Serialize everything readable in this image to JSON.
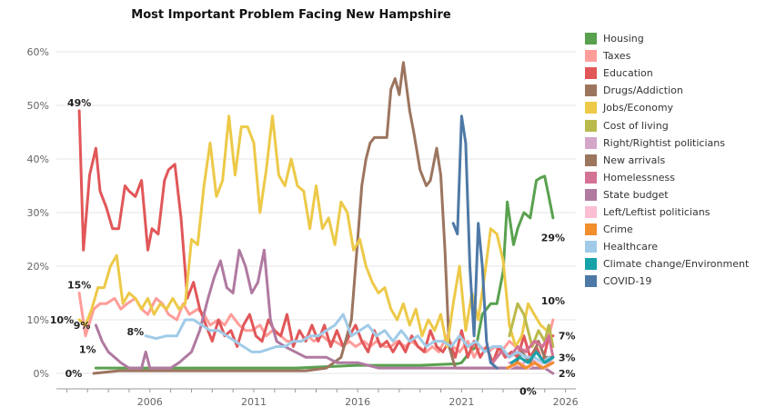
{
  "chart_data": {
    "type": "line",
    "title": "Most Important Problem Facing New Hampshire",
    "xlabel": "",
    "ylabel": "",
    "xlim": [
      2001.5,
      2026.5
    ],
    "ylim": [
      0,
      60
    ],
    "x_ticks": [
      "2006",
      "2011",
      "2016",
      "2021",
      "2026"
    ],
    "y_ticks": [
      "0%",
      "10%",
      "20%",
      "30%",
      "40%",
      "50%",
      "60%"
    ],
    "grid": "horizontal",
    "legend": "right",
    "series": [
      {
        "name": "Housing",
        "color": "#59a14f",
        "x": [
          2003.4,
          2008.0,
          2013.0,
          2016.0,
          2019.0,
          2020.8,
          2021.0,
          2021.4,
          2021.7,
          2022.0,
          2022.4,
          2022.7,
          2023.0,
          2023.2,
          2023.5,
          2023.7,
          2024.0,
          2024.3,
          2024.6,
          2024.8,
          2025.0,
          2025.2,
          2025.4
        ],
        "y": [
          1,
          1,
          1,
          1.5,
          1.5,
          1.8,
          2,
          4,
          5,
          11,
          13,
          13,
          19,
          32,
          24,
          27,
          30,
          29,
          36,
          36.5,
          36.8,
          33,
          29
        ]
      },
      {
        "name": "Taxes",
        "color": "#ff9d9a",
        "x": [
          2002.6,
          2002.9,
          2003.3,
          2003.6,
          2003.9,
          2004.3,
          2004.6,
          2004.9,
          2005.3,
          2005.6,
          2005.9,
          2006.3,
          2006.6,
          2006.9,
          2007.3,
          2007.6,
          2007.9,
          2008.3,
          2008.6,
          2008.9,
          2009.3,
          2009.6,
          2009.9,
          2010.3,
          2010.6,
          2010.9,
          2011.3,
          2011.6,
          2011.9,
          2012.3,
          2012.6,
          2012.9,
          2013.3,
          2013.6,
          2013.9,
          2014.3,
          2014.6,
          2014.9,
          2015.3,
          2015.6,
          2015.9,
          2016.3,
          2016.6,
          2016.9,
          2017.3,
          2017.6,
          2017.9,
          2018.3,
          2018.6,
          2018.9,
          2019.3,
          2019.6,
          2019.9,
          2020.3,
          2020.6,
          2020.9,
          2021.3,
          2021.6,
          2021.9,
          2022.3,
          2022.6,
          2022.9,
          2023.3,
          2023.6,
          2023.9,
          2024.3,
          2024.6,
          2024.9,
          2025.2,
          2025.4
        ],
        "y": [
          15,
          7,
          12,
          13,
          13,
          14,
          12,
          13,
          14,
          12,
          11,
          14,
          13,
          11,
          10,
          13,
          11,
          12,
          11,
          9,
          10,
          9,
          11,
          9,
          8,
          8,
          9,
          7,
          8,
          7,
          6,
          6,
          6,
          7,
          6,
          7,
          6,
          6,
          5,
          6,
          5,
          6,
          5,
          6,
          5,
          5,
          6,
          5,
          6,
          5,
          4,
          5,
          4,
          7,
          5,
          4,
          6,
          3,
          5,
          4,
          5,
          4,
          6,
          5,
          4,
          5,
          6,
          5,
          7,
          10
        ]
      },
      {
        "name": "Education",
        "color": "#e15759",
        "x": [
          2002.6,
          2002.8,
          2003.1,
          2003.4,
          2003.6,
          2003.9,
          2004.2,
          2004.5,
          2004.8,
          2005.0,
          2005.3,
          2005.6,
          2005.9,
          2006.1,
          2006.4,
          2006.7,
          2006.9,
          2007.2,
          2007.5,
          2007.8,
          2008.1,
          2008.4,
          2008.7,
          2009.0,
          2009.3,
          2009.6,
          2009.9,
          2010.2,
          2010.5,
          2010.8,
          2011.1,
          2011.4,
          2011.7,
          2012.0,
          2012.3,
          2012.6,
          2012.9,
          2013.2,
          2013.5,
          2013.8,
          2014.1,
          2014.4,
          2014.7,
          2015.0,
          2015.3,
          2015.6,
          2015.9,
          2016.2,
          2016.5,
          2016.8,
          2017.1,
          2017.4,
          2017.7,
          2018.0,
          2018.3,
          2018.6,
          2018.9,
          2019.2,
          2019.5,
          2019.8,
          2020.1,
          2020.4,
          2020.7,
          2021.0,
          2021.3,
          2021.6,
          2021.9,
          2022.2,
          2022.5,
          2022.8,
          2023.1,
          2023.4,
          2023.7,
          2024.0,
          2024.3,
          2024.6,
          2024.9,
          2025.2,
          2025.4
        ],
        "y": [
          49,
          23,
          37,
          42,
          34,
          31,
          27,
          27,
          35,
          34,
          33,
          36,
          23,
          27,
          26,
          36,
          38,
          39,
          29,
          14,
          17,
          12,
          9,
          6,
          10,
          7,
          8,
          5,
          9,
          11,
          7,
          6,
          10,
          8,
          7,
          11,
          5,
          8,
          6,
          9,
          6,
          9,
          5,
          8,
          5,
          7,
          9,
          6,
          4,
          8,
          5,
          6,
          4,
          6,
          4,
          7,
          5,
          4,
          8,
          5,
          4,
          6,
          3,
          8,
          3,
          6,
          3,
          5,
          2,
          5,
          3,
          4,
          3,
          7,
          3,
          5,
          2,
          7,
          7
        ]
      },
      {
        "name": "Drugs/Addiction",
        "color": "#9c755f",
        "x": [
          2003.3,
          2004.5,
          2006.0,
          2007.5,
          2009.0,
          2010.5,
          2012.0,
          2013.5,
          2014.5,
          2015.2,
          2015.7,
          2016.0,
          2016.2,
          2016.4,
          2016.6,
          2016.8,
          2017.1,
          2017.4,
          2017.6,
          2017.8,
          2018.0,
          2018.2,
          2018.5,
          2018.7,
          2019.0,
          2019.3,
          2019.5,
          2019.8,
          2020.0,
          2020.2,
          2020.4,
          2020.7,
          2021.0,
          2021.3,
          2021.7,
          2022.0,
          2022.5,
          2023.0,
          2023.5,
          2024.0,
          2024.5,
          2025.0,
          2025.4
        ],
        "y": [
          0,
          0.5,
          0.5,
          0.5,
          0.5,
          0.5,
          0.5,
          0.5,
          1,
          3,
          10,
          25,
          35,
          40,
          43,
          44,
          44,
          44,
          53,
          55,
          52,
          58,
          49,
          45,
          38,
          35,
          36,
          42,
          37,
          23,
          5,
          1,
          1,
          1,
          1,
          1,
          1,
          1,
          1,
          1,
          1,
          1,
          2
        ]
      },
      {
        "name": "Jobs/Economy",
        "color": "#edc948",
        "x": [
          2002.6,
          2002.9,
          2003.2,
          2003.5,
          2003.8,
          2004.1,
          2004.4,
          2004.7,
          2005.0,
          2005.3,
          2005.6,
          2005.9,
          2006.2,
          2006.5,
          2006.8,
          2007.1,
          2007.4,
          2007.7,
          2008.0,
          2008.3,
          2008.6,
          2008.9,
          2009.2,
          2009.5,
          2009.8,
          2010.1,
          2010.4,
          2010.7,
          2011.0,
          2011.3,
          2011.6,
          2011.9,
          2012.2,
          2012.5,
          2012.8,
          2013.1,
          2013.4,
          2013.7,
          2014.0,
          2014.3,
          2014.6,
          2014.9,
          2015.2,
          2015.5,
          2015.8,
          2016.1,
          2016.4,
          2016.7,
          2017.0,
          2017.3,
          2017.6,
          2017.9,
          2018.2,
          2018.5,
          2018.8,
          2019.1,
          2019.4,
          2019.7,
          2020.0,
          2020.3,
          2020.6,
          2020.9,
          2021.2,
          2021.5,
          2021.8,
          2022.1,
          2022.4,
          2022.7,
          2023.0,
          2023.3,
          2023.6,
          2023.9,
          2024.2,
          2024.5,
          2024.8,
          2025.1
        ],
        "y": [
          10,
          9,
          12,
          16,
          16,
          20,
          22,
          13,
          15,
          14,
          12,
          14,
          11,
          13,
          12,
          14,
          12,
          13,
          25,
          24,
          35,
          43,
          33,
          36,
          48,
          37,
          46,
          46,
          43,
          30,
          38,
          48,
          37,
          35,
          40,
          35,
          34,
          27,
          35,
          27,
          29,
          24,
          32,
          30,
          23,
          25,
          20,
          17,
          15,
          16,
          12,
          10,
          13,
          9,
          12,
          7,
          10,
          8,
          11,
          5,
          13,
          20,
          8,
          15,
          10,
          18,
          27,
          26,
          21,
          9,
          5,
          7,
          13,
          11,
          9,
          8
        ]
      },
      {
        "name": "Cost of living",
        "color": "#bab94b",
        "x": [
          2023.3,
          2023.7,
          2024.0,
          2024.4,
          2024.7,
          2025.0,
          2025.2,
          2025.4
        ],
        "y": [
          7,
          13,
          11,
          5,
          8,
          6,
          9,
          5
        ]
      },
      {
        "name": "Right/Rightist politicians",
        "color": "#d4a6c8",
        "x": [
          2023.3,
          2023.8,
          2024.2,
          2024.6,
          2025.0,
          2025.4
        ],
        "y": [
          2,
          1,
          3,
          2,
          1,
          3
        ]
      },
      {
        "name": "New arrivals",
        "color": "#9c755f",
        "x": [
          2023.5,
          2023.9,
          2024.3,
          2024.7,
          2025.0,
          2025.4
        ],
        "y": [
          1,
          4,
          2,
          6,
          3,
          3
        ]
      },
      {
        "name": "Homelessness",
        "color": "#d37295",
        "x": [
          2022.5,
          2022.9,
          2023.3,
          2023.7,
          2024.1,
          2024.5,
          2024.9,
          2025.2,
          2025.4
        ],
        "y": [
          2,
          4,
          3,
          5,
          4,
          6,
          5,
          7,
          3
        ]
      },
      {
        "name": "State budget",
        "color": "#b07aa1",
        "x": [
          2003.4,
          2003.7,
          2004.0,
          2004.3,
          2004.6,
          2005.0,
          2005.3,
          2005.6,
          2005.8,
          2006.0,
          2006.3,
          2006.6,
          2007.0,
          2007.4,
          2007.7,
          2008.0,
          2008.4,
          2008.8,
          2009.1,
          2009.4,
          2009.7,
          2010.0,
          2010.3,
          2010.6,
          2010.9,
          2011.2,
          2011.5,
          2011.8,
          2012.1,
          2012.5,
          2013.0,
          2013.5,
          2014.0,
          2014.5,
          2015.0,
          2015.5,
          2016.0,
          2017.0,
          2018.0,
          2019.0,
          2020.0,
          2021.0,
          2022.0,
          2023.0,
          2024.0,
          2025.0,
          2025.4
        ],
        "y": [
          9,
          6,
          4,
          3,
          2,
          1,
          1,
          1,
          4,
          1,
          1,
          1,
          1,
          2,
          3,
          4,
          8,
          14,
          18,
          21,
          16,
          15,
          23,
          20,
          15,
          17,
          23,
          10,
          6,
          5,
          4,
          3,
          3,
          3,
          2,
          2,
          2,
          1,
          1,
          1,
          1,
          1,
          1,
          1,
          1,
          1,
          0
        ]
      },
      {
        "name": "Left/Leftist politicians",
        "color": "#fabfd2",
        "x": [
          2023.3,
          2023.8,
          2024.2,
          2024.6,
          2025.0,
          2025.4
        ],
        "y": [
          1,
          2,
          1,
          2,
          1,
          2
        ]
      },
      {
        "name": "Crime",
        "color": "#f28e2b",
        "x": [
          2023.2,
          2023.7,
          2024.1,
          2024.5,
          2024.9,
          2025.4
        ],
        "y": [
          1,
          2,
          1,
          2,
          1,
          2
        ]
      },
      {
        "name": "Healthcare",
        "color": "#a0cbe8",
        "x": [
          2005.8,
          2006.3,
          2006.8,
          2007.3,
          2007.7,
          2008.1,
          2008.5,
          2008.9,
          2009.3,
          2009.7,
          2010.1,
          2010.5,
          2010.9,
          2011.3,
          2011.7,
          2012.1,
          2012.5,
          2012.9,
          2013.3,
          2013.7,
          2014.1,
          2014.5,
          2014.9,
          2015.3,
          2015.7,
          2016.1,
          2016.5,
          2016.9,
          2017.3,
          2017.7,
          2018.1,
          2018.5,
          2018.9,
          2019.3,
          2019.7,
          2020.1,
          2020.5,
          2020.9,
          2021.3,
          2021.7,
          2022.1,
          2022.5,
          2022.9,
          2023.3,
          2023.7,
          2024.1,
          2024.5,
          2024.9,
          2025.2
        ],
        "y": [
          7,
          6.5,
          7,
          7,
          10,
          10,
          9,
          8,
          8,
          7,
          6,
          5,
          4,
          4,
          4.5,
          5,
          5,
          6,
          6,
          7,
          7,
          8,
          9,
          11,
          7,
          8,
          9,
          7,
          8,
          6,
          8,
          6,
          7,
          5,
          6,
          6,
          5,
          7,
          5,
          6,
          4,
          5,
          5,
          3,
          4,
          3,
          3,
          2,
          3
        ]
      },
      {
        "name": "Climate change/Environment",
        "color": "#17a2a8",
        "x": [
          2023.4,
          2023.8,
          2024.2,
          2024.6,
          2025.0,
          2025.4
        ],
        "y": [
          2,
          3,
          2,
          4,
          2,
          3
        ]
      },
      {
        "name": "COVID-19",
        "color": "#4e79a7",
        "x": [
          2020.6,
          2020.8,
          2021.0,
          2021.2,
          2021.4,
          2021.6,
          2021.8,
          2022.0,
          2022.2,
          2022.4,
          2022.7
        ],
        "y": [
          28,
          26,
          48,
          43,
          20,
          7,
          28,
          20,
          6,
          2,
          1
        ]
      }
    ],
    "annotations": [
      {
        "text": "49%",
        "x": 2002.6,
        "y": 49,
        "anchor": "above"
      },
      {
        "text": "15%",
        "x": 2002.6,
        "y": 15,
        "anchor": "above"
      },
      {
        "text": "10%",
        "x": 2002.6,
        "y": 10,
        "anchor": "left"
      },
      {
        "text": "9%",
        "x": 2003.4,
        "y": 9,
        "anchor": "left"
      },
      {
        "text": "8%",
        "x": 2005.3,
        "y": 9.5,
        "anchor": "below"
      },
      {
        "text": "1%",
        "x": 2003.0,
        "y": 3,
        "anchor": "above"
      },
      {
        "text": "0%",
        "x": 2003.0,
        "y": 0,
        "anchor": "left"
      },
      {
        "text": "29%",
        "x": 2025.4,
        "y": 27,
        "anchor": "below"
      },
      {
        "text": "10%",
        "x": 2025.4,
        "y": 12,
        "anchor": "above"
      },
      {
        "text": "7%",
        "x": 2025.4,
        "y": 7,
        "anchor": "right"
      },
      {
        "text": "3%",
        "x": 2025.4,
        "y": 3,
        "anchor": "right"
      },
      {
        "text": "2%",
        "x": 2025.4,
        "y": 0,
        "anchor": "right"
      },
      {
        "text": "0%",
        "x": 2024.2,
        "y": -1.6,
        "anchor": "below"
      }
    ]
  }
}
